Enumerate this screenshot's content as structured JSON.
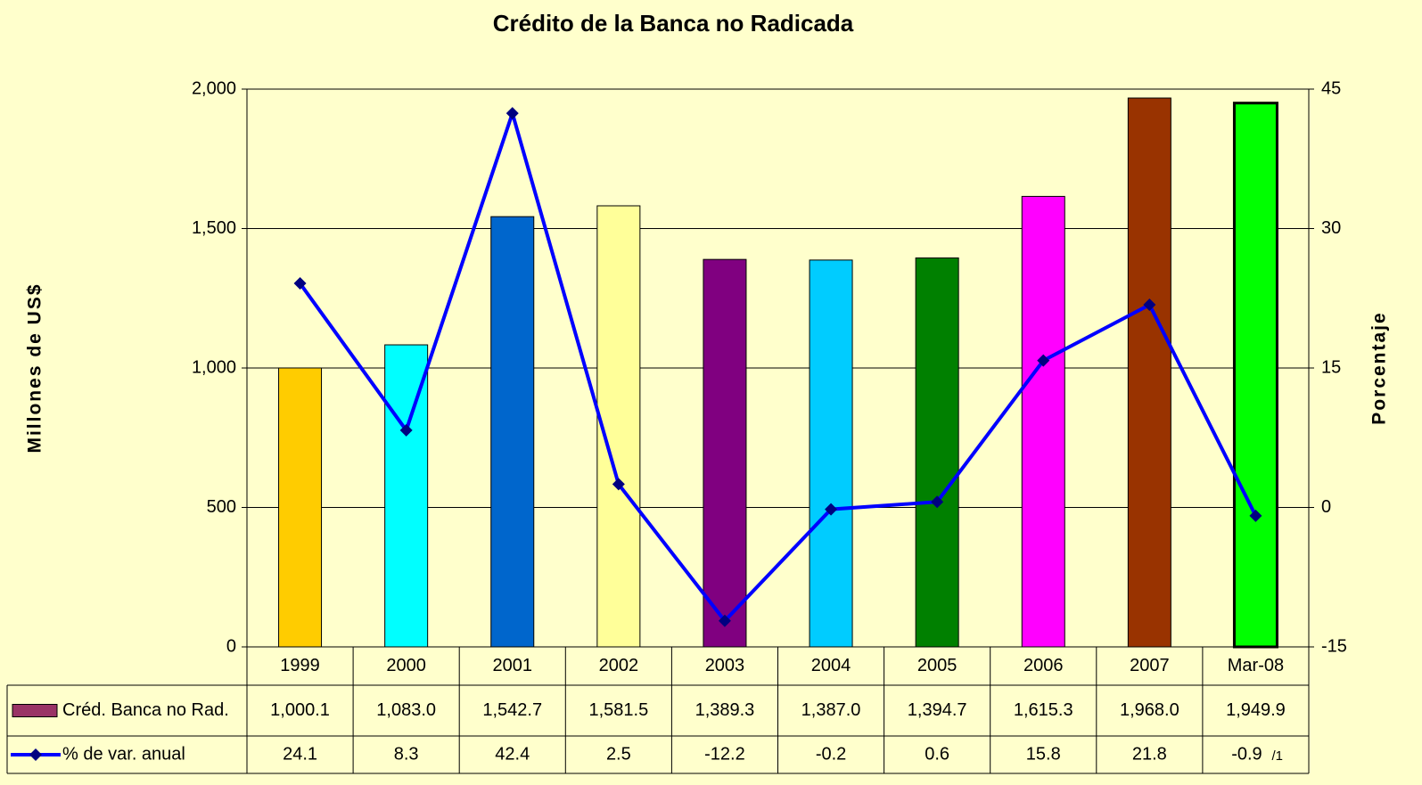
{
  "chart_data": {
    "type": "bar_line_table",
    "title": "Crédito de la Banca no Radicada",
    "y_label": "Millones de US$",
    "y2_label": "Porcentaje",
    "categories": [
      "1999",
      "2000",
      "2001",
      "2002",
      "2003",
      "2004",
      "2005",
      "2006",
      "2007",
      "Mar-08"
    ],
    "series": [
      {
        "name": "Créd. Banca no Rad.",
        "type": "bar",
        "color": "#993366",
        "colors": [
          "#ffcc00",
          "#00ffff",
          "#0066cc",
          "#ffff99",
          "#800080",
          "#00ccff",
          "#008000",
          "#ff00ff",
          "#993300",
          "#00ff00"
        ],
        "values": [
          1000.1,
          1083.0,
          1542.7,
          1581.5,
          1389.3,
          1387.0,
          1394.7,
          1615.3,
          1968.0,
          1949.9
        ],
        "value_labels": [
          "1,000.1",
          "1,083.0",
          "1,542.7",
          "1,581.5",
          "1,389.3",
          "1,387.0",
          "1,394.7",
          "1,615.3",
          "1,968.0",
          "1,949.9"
        ]
      },
      {
        "name": "% de var. anual",
        "type": "line",
        "axis": "y2",
        "color": "#0000ff",
        "marker_color": "#000080",
        "values": [
          24.1,
          8.3,
          42.4,
          2.5,
          -12.2,
          -0.2,
          0.6,
          15.8,
          21.8,
          -0.9
        ]
      }
    ],
    "footnote_marker": "/1",
    "ylim": [
      0,
      2000
    ],
    "yticks": [
      0,
      500,
      {
        "value": 1000,
        "label": "1,000"
      },
      {
        "value": 1500,
        "label": "1,500"
      },
      {
        "value": 2000,
        "label": "2,000"
      }
    ],
    "y2lim": [
      -15,
      45
    ],
    "y2ticks": [
      -15,
      0,
      15,
      30,
      45
    ],
    "grid": true
  }
}
